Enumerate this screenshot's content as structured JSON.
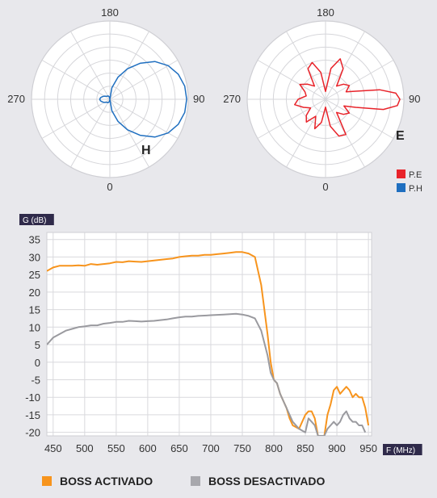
{
  "polar": {
    "angle_labels": [
      "180",
      "90",
      "0",
      "270"
    ],
    "h_label": "H",
    "e_label": "E",
    "legend": [
      {
        "text": "P.E",
        "color": "#e8232a"
      },
      {
        "text": "P.H",
        "color": "#1f6fc0"
      }
    ]
  },
  "chart_data": [
    {
      "type": "polar",
      "name_label": "H",
      "series": [
        {
          "color": "#1f6fc0",
          "theta": [
            0,
            10,
            20,
            30,
            40,
            50,
            60,
            70,
            80,
            90,
            100,
            110,
            120,
            130,
            140,
            150,
            160,
            170,
            180,
            190,
            200,
            210,
            220,
            230,
            240,
            250,
            260,
            270,
            280,
            290,
            300,
            310,
            320,
            330,
            340,
            350
          ],
          "r": [
            0.0,
            0.15,
            0.3,
            0.45,
            0.6,
            0.75,
            0.86,
            0.93,
            0.97,
            0.98,
            0.97,
            0.93,
            0.86,
            0.75,
            0.6,
            0.45,
            0.3,
            0.15,
            0.0,
            0.03,
            0.04,
            0.05,
            0.05,
            0.06,
            0.08,
            0.1,
            0.12,
            0.13,
            0.12,
            0.1,
            0.08,
            0.06,
            0.05,
            0.05,
            0.04,
            0.03
          ]
        }
      ]
    },
    {
      "type": "polar",
      "name_label": "E",
      "series": [
        {
          "color": "#e8232a",
          "theta": [
            0,
            10,
            20,
            30,
            40,
            50,
            60,
            70,
            75,
            80,
            85,
            90,
            95,
            100,
            105,
            110,
            120,
            130,
            140,
            150,
            160,
            170,
            180,
            190,
            200,
            210,
            220,
            230,
            240,
            250,
            260,
            270,
            280,
            290,
            300,
            310,
            320,
            330,
            340,
            350
          ],
          "r": [
            0.1,
            0.35,
            0.5,
            0.52,
            0.22,
            0.3,
            0.35,
            0.25,
            0.4,
            0.75,
            0.92,
            0.95,
            0.9,
            0.7,
            0.4,
            0.28,
            0.35,
            0.3,
            0.22,
            0.45,
            0.55,
            0.4,
            0.1,
            0.35,
            0.5,
            0.45,
            0.22,
            0.3,
            0.38,
            0.28,
            0.25,
            0.35,
            0.4,
            0.3,
            0.22,
            0.32,
            0.38,
            0.25,
            0.4,
            0.3
          ]
        }
      ]
    },
    {
      "type": "line",
      "ylabel": "G (dB)",
      "xlabel": "F (MHz)",
      "xlim": [
        440,
        955
      ],
      "ylim": [
        -21,
        37
      ],
      "xticks": [
        450,
        500,
        550,
        600,
        650,
        700,
        750,
        800,
        850,
        900,
        950
      ],
      "yticks": [
        35,
        30,
        25,
        20,
        15,
        10,
        5,
        0,
        -5,
        -10,
        -15,
        -20
      ],
      "series": [
        {
          "name": "BOSS ACTIVADO",
          "color": "#f7941d",
          "x": [
            440,
            450,
            460,
            470,
            480,
            490,
            500,
            510,
            520,
            530,
            540,
            550,
            560,
            570,
            580,
            590,
            600,
            610,
            620,
            630,
            640,
            650,
            660,
            670,
            680,
            690,
            700,
            710,
            720,
            730,
            740,
            750,
            760,
            770,
            780,
            790,
            795,
            800,
            805,
            810,
            815,
            820,
            825,
            830,
            840,
            850,
            855,
            860,
            865,
            870,
            880,
            885,
            890,
            895,
            900,
            905,
            910,
            915,
            920,
            925,
            930,
            935,
            940,
            945,
            950
          ],
          "y": [
            26,
            27,
            27.5,
            27.5,
            27.5,
            27.6,
            27.5,
            28,
            27.8,
            28,
            28.2,
            28.6,
            28.5,
            28.8,
            28.7,
            28.6,
            28.8,
            29,
            29.2,
            29.4,
            29.6,
            30,
            30.2,
            30.4,
            30.4,
            30.6,
            30.6,
            30.8,
            31,
            31.2,
            31.4,
            31.4,
            31,
            30,
            22,
            8,
            0,
            -5,
            -6,
            -9,
            -11,
            -13,
            -16,
            -18,
            -19,
            -15,
            -14,
            -14,
            -16,
            -21,
            -21,
            -15,
            -12,
            -8,
            -7,
            -9,
            -8,
            -7,
            -8,
            -10,
            -9,
            -10,
            -10,
            -13,
            -18
          ]
        },
        {
          "name": "BOSS DESACTIVADO",
          "color": "#9a9a9f",
          "x": [
            440,
            450,
            460,
            470,
            480,
            490,
            500,
            510,
            520,
            530,
            540,
            550,
            560,
            570,
            580,
            590,
            600,
            610,
            620,
            630,
            640,
            650,
            660,
            670,
            680,
            690,
            700,
            710,
            720,
            730,
            740,
            750,
            760,
            770,
            780,
            790,
            795,
            800,
            805,
            810,
            815,
            820,
            825,
            830,
            840,
            850,
            855,
            860,
            865,
            870,
            880,
            885,
            890,
            895,
            900,
            905,
            910,
            915,
            920,
            925,
            930,
            935,
            940,
            945
          ],
          "y": [
            5,
            7,
            8,
            9,
            9.5,
            10,
            10.2,
            10.5,
            10.5,
            11,
            11.2,
            11.5,
            11.5,
            11.8,
            11.7,
            11.6,
            11.7,
            11.8,
            12,
            12.2,
            12.5,
            12.8,
            13,
            13,
            13.2,
            13.3,
            13.4,
            13.5,
            13.6,
            13.7,
            13.8,
            13.6,
            13.2,
            12.5,
            9,
            2,
            -3,
            -5,
            -6,
            -9,
            -11,
            -13,
            -15,
            -17,
            -19,
            -20,
            -16,
            -17,
            -18,
            -21,
            -21,
            -19,
            -18,
            -17,
            -18,
            -17,
            -15,
            -14,
            -16,
            -17,
            -17,
            -18,
            -18,
            -20
          ]
        }
      ]
    }
  ],
  "legend_bottom": [
    {
      "text": "BOSS ACTIVADO",
      "color": "#f7941d"
    },
    {
      "text": "BOSS DESACTIVADO",
      "color": "#a8a8ad"
    }
  ]
}
